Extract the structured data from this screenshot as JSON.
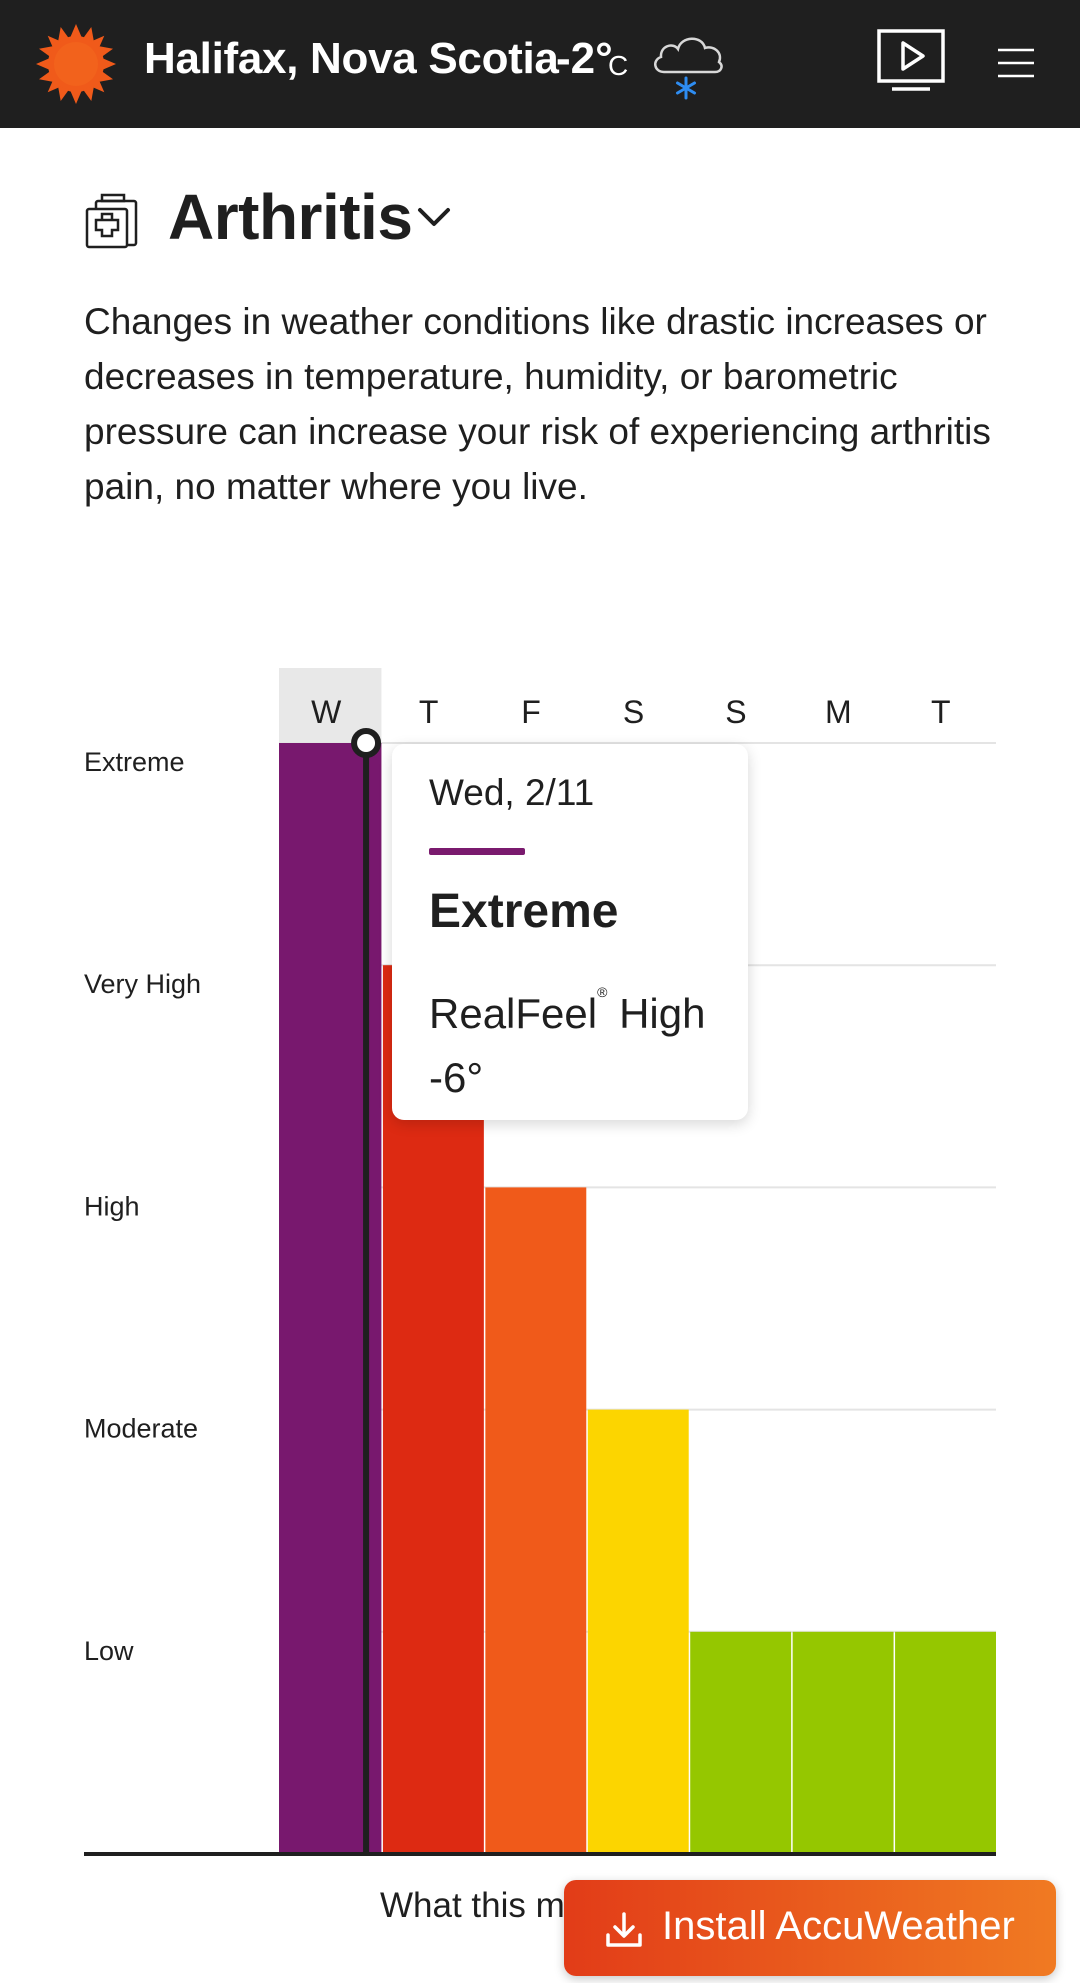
{
  "header": {
    "location": "Halifax, Nova Scotia",
    "temperature": "-2°",
    "unit": "C",
    "weather_icon": "cloud-snow-icon",
    "video_icon": "video-icon",
    "menu_icon": "menu-icon"
  },
  "page": {
    "title": "Arthritis",
    "title_icon": "health-kit-icon",
    "description": "Changes in weather conditions like drastic increases or decreases in temperature, humidity, or barometric pressure can increase your risk of experiencing arthritis pain, no matter where you live."
  },
  "chart_data": {
    "type": "bar",
    "categories": [
      "W",
      "T",
      "F",
      "S",
      "S",
      "M",
      "T"
    ],
    "levels": [
      "Low",
      "Moderate",
      "High",
      "Very High",
      "Extreme"
    ],
    "values": [
      5,
      4,
      3,
      2,
      1,
      1,
      1
    ],
    "colors": [
      "#78186e",
      "#dd2a12",
      "#f05a1a",
      "#fcd500",
      "#95c700",
      "#95c700",
      "#95c700"
    ],
    "selected_index": 0,
    "ylim": [
      0,
      5
    ]
  },
  "tooltip": {
    "date": "Wed, 2/11",
    "level": "Extreme",
    "realfeel_label": "RealFeel",
    "realfeel_mark": "®",
    "realfeel_suffix": "High",
    "realfeel_value": "-6°",
    "accent_color": "#7a1a6e"
  },
  "footer": {
    "link_text": "What this me",
    "install_label": "Install AccuWeather",
    "install_icon": "download-icon"
  }
}
